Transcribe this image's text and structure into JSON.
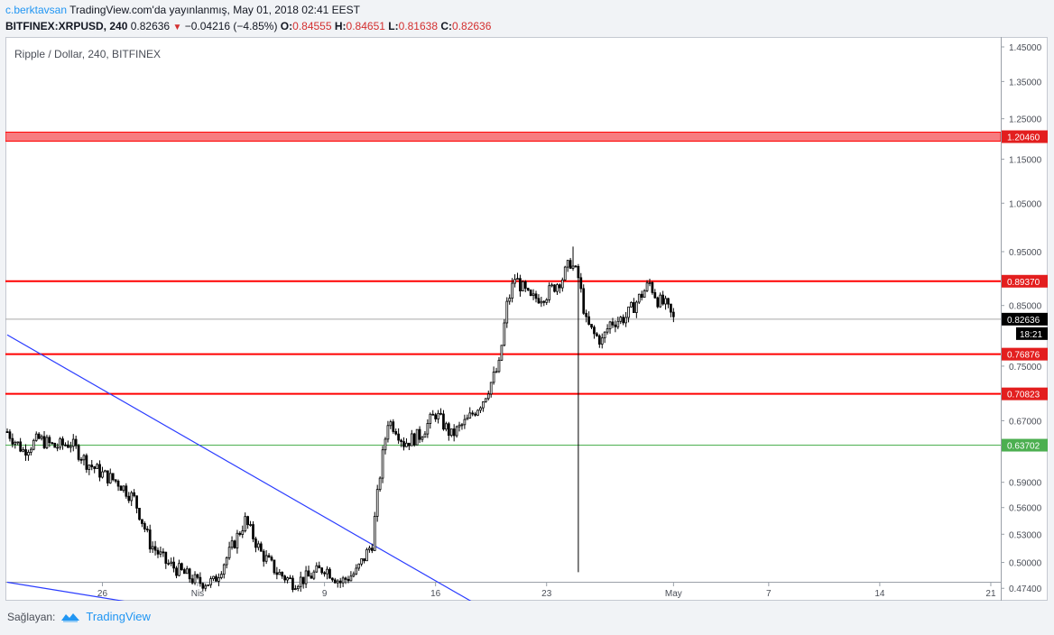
{
  "header": {
    "author": "c.berktavsan",
    "published_text": "TradingView.com'da yayınlanmış, May 01, 2018 02:41 EEST",
    "symbol": "BITFINEX:XRPUSD, 240",
    "last": "0.82636",
    "arrow": "▼",
    "change": "−0.04216 (−4.85%)",
    "o_label": "O:",
    "o_value": "0.84555",
    "h_label": "H:",
    "h_value": "0.84651",
    "l_label": "L:",
    "l_value": "0.81638",
    "c_label": "C:",
    "c_value": "0.82636"
  },
  "chart_title": "Ripple / Dollar, 240, BITFINEX",
  "footer": {
    "label": "Sağlayan:",
    "brand": "TradingView"
  },
  "colors": {
    "up_candle": "#ffffff",
    "down_candle": "#000000",
    "wick": "#000000",
    "resistance": "#ff0000",
    "zone": "#f77c80",
    "support_green": "#4caf50",
    "trendline": "#2b3dff",
    "last_price_line": "#a9a9a9"
  },
  "chart_data": {
    "type": "candlestick",
    "title": "Ripple / Dollar, 240, BITFINEX",
    "y_scale": "log",
    "ylim": [
      0.462,
      1.48
    ],
    "y_ticks": [
      "1.45000",
      "1.35000",
      "1.25000",
      "1.15000",
      "1.05000",
      "0.95000",
      "0.85000",
      "0.75000",
      "0.67000",
      "0.59000",
      "0.56000",
      "0.53000",
      "0.50000",
      "0.47400"
    ],
    "x_ticks": [
      "26",
      "Nis",
      "9",
      "16",
      "23",
      "May",
      "7",
      "14",
      "21"
    ],
    "x_tick_dates": [
      "2018-03-26",
      "2018-04-01",
      "2018-04-09",
      "2018-04-16",
      "2018-04-23",
      "2018-05-01",
      "2018-05-07",
      "2018-05-14",
      "2018-05-21"
    ],
    "countdown": "18:21",
    "last_price": {
      "value": 0.82636,
      "label": "0.82636"
    },
    "levels": [
      {
        "name": "resistance-zone",
        "value": 1.2046,
        "label": "1.20460",
        "kind": "zone",
        "color": "#ff0000"
      },
      {
        "name": "resistance-1",
        "value": 0.8937,
        "label": "0.89370",
        "kind": "line",
        "color": "#ff0000"
      },
      {
        "name": "support-1",
        "value": 0.76876,
        "label": "0.76876",
        "kind": "line",
        "color": "#ff0000"
      },
      {
        "name": "support-2",
        "value": 0.70823,
        "label": "0.70823",
        "kind": "line",
        "color": "#ff0000"
      },
      {
        "name": "support-3",
        "value": 0.63702,
        "label": "0.63702",
        "kind": "line",
        "color": "#4caf50"
      }
    ],
    "trendlines": [
      {
        "name": "falling-trendline",
        "points": [
          [
            "2018-03-20T00:00",
            0.8
          ],
          [
            "2018-04-19T00:00",
            0.455
          ]
        ]
      },
      {
        "name": "lower-trendline",
        "points": [
          [
            "2018-03-20T00:00",
            0.48
          ],
          [
            "2018-03-28T00:00",
            0.46
          ]
        ]
      }
    ],
    "close_anchors": [
      [
        "2018-03-20T00:00",
        0.655
      ],
      [
        "2018-03-21T00:00",
        0.63
      ],
      [
        "2018-03-22T00:00",
        0.645
      ],
      [
        "2018-03-23T00:00",
        0.635
      ],
      [
        "2018-03-24T00:00",
        0.64
      ],
      [
        "2018-03-25T00:00",
        0.615
      ],
      [
        "2018-03-26T00:00",
        0.6
      ],
      [
        "2018-03-27T00:00",
        0.59
      ],
      [
        "2018-03-28T00:00",
        0.57
      ],
      [
        "2018-03-29T00:00",
        0.52
      ],
      [
        "2018-03-30T00:00",
        0.5
      ],
      [
        "2018-03-31T00:00",
        0.49
      ],
      [
        "2018-04-01T00:00",
        0.48
      ],
      [
        "2018-04-02T00:00",
        0.48
      ],
      [
        "2018-04-03T00:00",
        0.51
      ],
      [
        "2018-04-04T00:00",
        0.545
      ],
      [
        "2018-04-05T00:00",
        0.51
      ],
      [
        "2018-04-06T00:00",
        0.49
      ],
      [
        "2018-04-07T00:00",
        0.48
      ],
      [
        "2018-04-08T00:00",
        0.485
      ],
      [
        "2018-04-09T00:00",
        0.495
      ],
      [
        "2018-04-10T00:00",
        0.48
      ],
      [
        "2018-04-11T00:00",
        0.49
      ],
      [
        "2018-04-12T00:00",
        0.52
      ],
      [
        "2018-04-12T12:00",
        0.6
      ],
      [
        "2018-04-13T00:00",
        0.67
      ],
      [
        "2018-04-13T12:00",
        0.66
      ],
      [
        "2018-04-14T00:00",
        0.64
      ],
      [
        "2018-04-15T00:00",
        0.65
      ],
      [
        "2018-04-16T00:00",
        0.68
      ],
      [
        "2018-04-17T00:00",
        0.65
      ],
      [
        "2018-04-18T00:00",
        0.67
      ],
      [
        "2018-04-19T00:00",
        0.7
      ],
      [
        "2018-04-20T00:00",
        0.75
      ],
      [
        "2018-04-20T12:00",
        0.85
      ],
      [
        "2018-04-21T00:00",
        0.9
      ],
      [
        "2018-04-22T00:00",
        0.86
      ],
      [
        "2018-04-23T00:00",
        0.87
      ],
      [
        "2018-04-24T00:00",
        0.9
      ],
      [
        "2018-04-24T12:00",
        0.93
      ],
      [
        "2018-04-25T00:00",
        0.9
      ],
      [
        "2018-04-25T12:00",
        0.82
      ],
      [
        "2018-04-26T00:00",
        0.8
      ],
      [
        "2018-04-26T12:00",
        0.79
      ],
      [
        "2018-04-27T00:00",
        0.82
      ],
      [
        "2018-04-28T00:00",
        0.83
      ],
      [
        "2018-04-29T00:00",
        0.87
      ],
      [
        "2018-04-29T12:00",
        0.89
      ],
      [
        "2018-04-30T00:00",
        0.86
      ],
      [
        "2018-04-30T12:00",
        0.85
      ],
      [
        "2018-05-01T00:00",
        0.826
      ]
    ],
    "notable_wicks": [
      {
        "time": "2018-04-25T00:00",
        "low": 0.49
      },
      {
        "time": "2018-04-24T16:00",
        "high": 0.96
      }
    ]
  }
}
